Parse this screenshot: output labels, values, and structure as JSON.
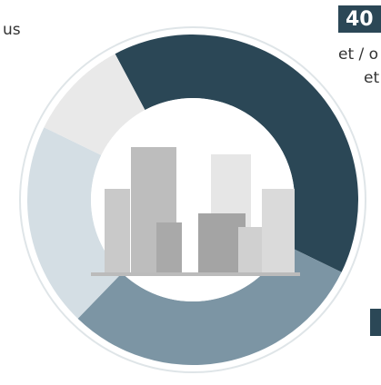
{
  "chart_data": {
    "type": "pie",
    "values": [
      40,
      30,
      20,
      10
    ],
    "colors": [
      "#2b4756",
      "#7c95a4",
      "#d4dee4",
      "#e9e9e9"
    ],
    "annotations": [
      "us",
      "et / o",
      "et"
    ]
  }
}
